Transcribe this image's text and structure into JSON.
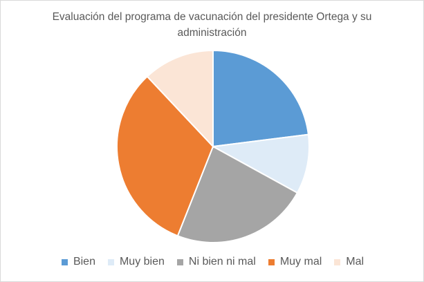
{
  "chart_data": {
    "type": "pie",
    "title": "Evaluación del programa de vacunación del presidente Ortega y su administración",
    "categories": [
      "Bien",
      "Muy bien",
      "Ni bien ni mal",
      "Muy mal",
      "Mal"
    ],
    "values": [
      23,
      10,
      23,
      32,
      12
    ],
    "colors": [
      "#5b9bd5",
      "#deebf7",
      "#a5a5a5",
      "#ed7d31",
      "#fbe5d6"
    ],
    "legend": "bottom"
  }
}
